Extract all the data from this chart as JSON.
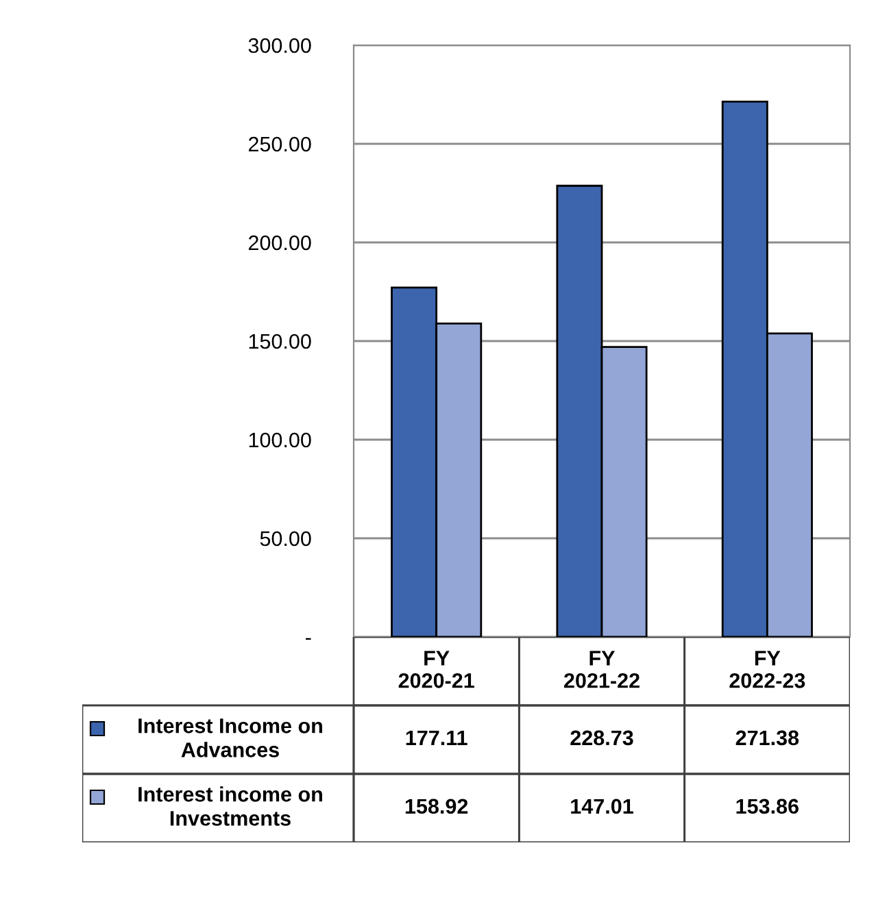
{
  "chart_data": {
    "type": "bar",
    "categories": [
      "FY\n2020-21",
      "FY\n2021-22",
      "FY\n2022-23"
    ],
    "series": [
      {
        "name": "Interest Income on Advances",
        "color": "#3d65ad",
        "values": [
          177.11,
          228.73,
          271.38
        ]
      },
      {
        "name": "Interest income on Investments",
        "color": "#93a6d6",
        "values": [
          158.92,
          147.01,
          153.86
        ]
      }
    ],
    "ylim": [
      0,
      300
    ],
    "yticks": [
      {
        "value": 0,
        "label": "-"
      },
      {
        "value": 50,
        "label": "50.00"
      },
      {
        "value": 100,
        "label": "100.00"
      },
      {
        "value": 150,
        "label": "150.00"
      },
      {
        "value": 200,
        "label": "200.00"
      },
      {
        "value": 250,
        "label": "250.00"
      },
      {
        "value": 300,
        "label": "300.00"
      }
    ],
    "grid": "y",
    "legend": "bottom",
    "data_labels": true
  }
}
